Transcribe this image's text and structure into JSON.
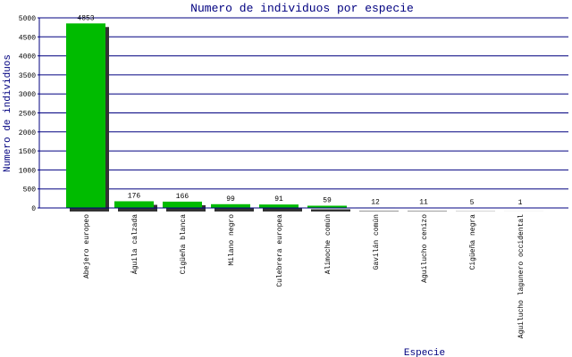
{
  "chart_data": {
    "type": "bar",
    "title": "Numero de individuos por especie",
    "x_label": "Especie",
    "y_label": "Numero de individuos",
    "categories": [
      "Abejero europeo",
      "Águila calzada",
      "Cigüeña blanca",
      "Milano negro",
      "Culebrera europea",
      "Alimoche común",
      "Gavilán común",
      "Aguilucho cenizo",
      "Cigüeña negra",
      "Aguilucho lagunero occidental"
    ],
    "values": [
      4853,
      176,
      166,
      99,
      91,
      59,
      12,
      11,
      5,
      1
    ],
    "color": "#00bb00",
    "shadow_color": "#333333",
    "ylim": [
      0,
      5000
    ],
    "yticks": [
      0,
      500,
      1000,
      1500,
      2000,
      2500,
      3000,
      3500,
      4000,
      4500,
      5000
    ],
    "grid": true
  }
}
